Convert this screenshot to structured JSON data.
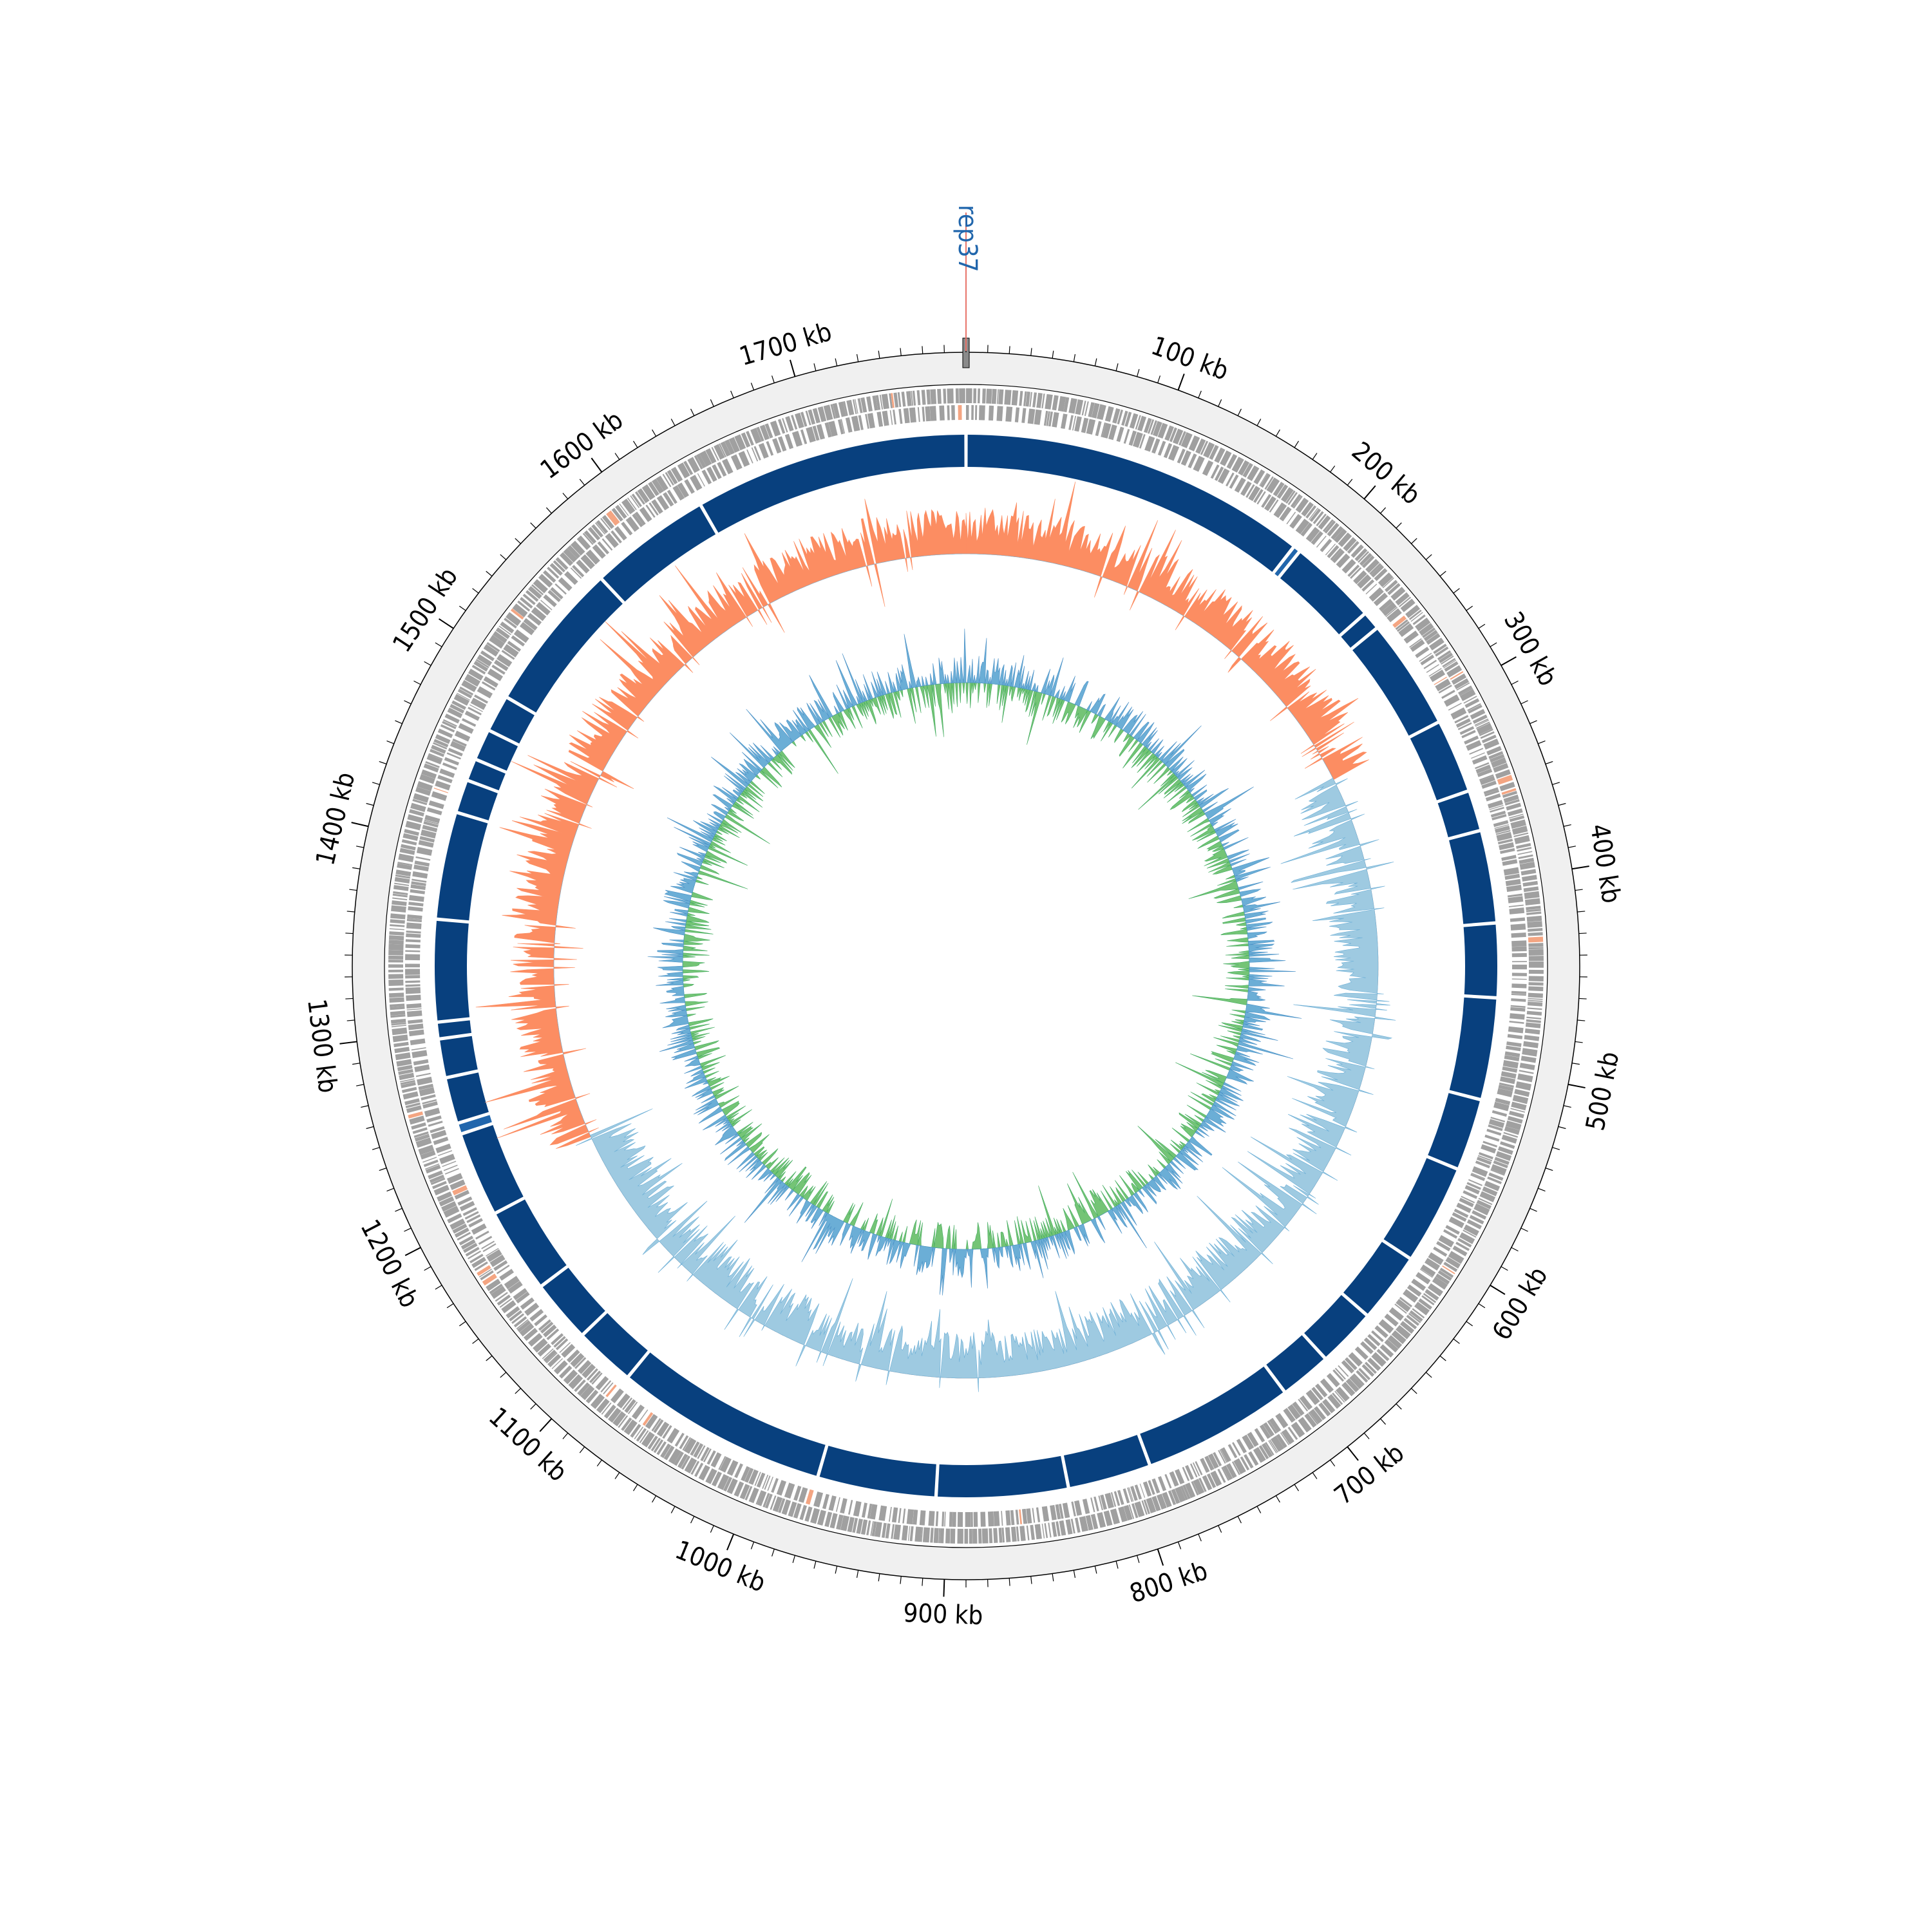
{
  "genome": {
    "total_length_kb": 1780,
    "tick_labels": [
      "100 kb",
      "200 kb",
      "300 kb",
      "400 kb",
      "500 kb",
      "600 kb",
      "700 kb",
      "800 kb",
      "900 kb",
      "1000 kb",
      "1100 kb",
      "1200 kb",
      "1300 kb",
      "1400 kb",
      "1500 kb",
      "1600 kb",
      "1700 kb"
    ],
    "major_tick_step_kb": 100,
    "minor_tick_step_kb": 10
  },
  "marker": {
    "label": "rep37",
    "position_kb": 0,
    "label_color": "#2166ac",
    "line_color": "#e8746a"
  },
  "colors": {
    "outer_band": "#f0f0f0",
    "genes": "#a0a0a0",
    "gene_highlight": "#f4a582",
    "contigs": "#08407e",
    "contig_highlight": "#2166ac",
    "gc_skew_positive": "#fc8d62",
    "gc_skew_negative": "#9ecae1",
    "gc_content_high": "#74c476",
    "gc_content_low": "#6baed6"
  },
  "chart_data": {
    "type": "circular-genome-map",
    "contig_breaks_kb": [
      188,
      192,
      240,
      250,
      310,
      350,
      372,
      422,
      462,
      517,
      556,
      610,
      648,
      680,
      708,
      790,
      835,
      906,
      970,
      1085,
      1118,
      1152,
      1198,
      1244,
      1250,
      1275,
      1296,
      1305,
      1360,
      1418,
      1436,
      1448,
      1465,
      1485,
      1566,
      1632
    ],
    "gc_skew_switch_kb": [
      311,
      1215
    ],
    "tracks": [
      "position ruler",
      "genes (both strands)",
      "contigs",
      "GC skew",
      "GC content"
    ]
  }
}
